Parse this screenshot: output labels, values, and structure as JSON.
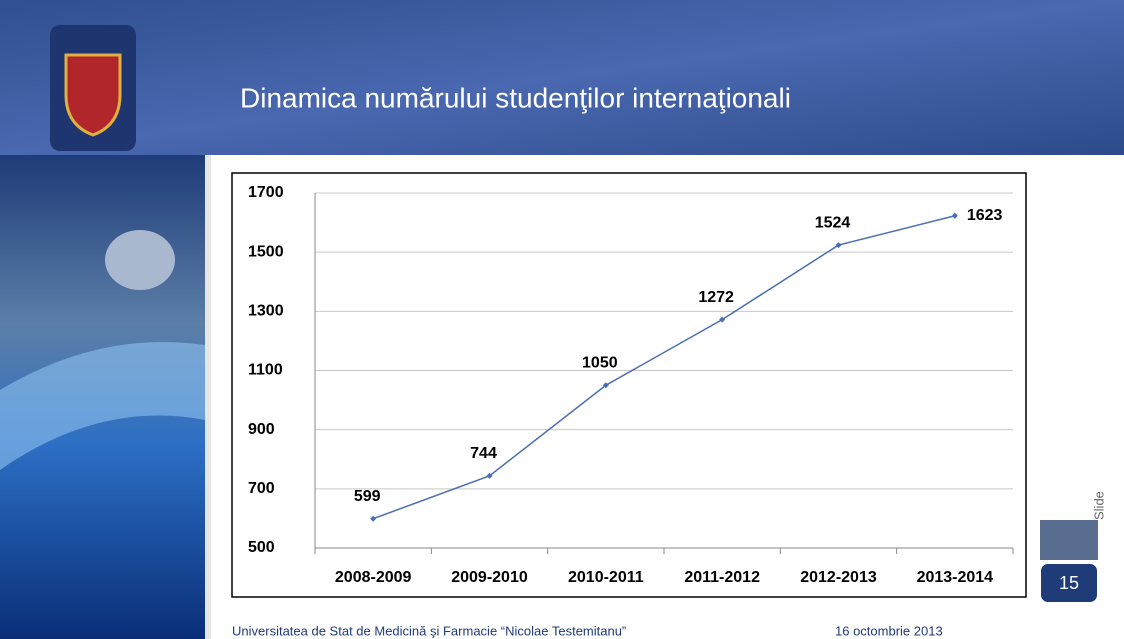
{
  "slide": {
    "title": "Dinamica numărului studenţilor internaţionali",
    "footer_left": "Universitatea de Stat de Medicină şi Farmacie “Nicolae Testemitanu”",
    "footer_right": "16 octombrie 2013",
    "slide_label": "Slide",
    "slide_number": "15"
  },
  "chart_data": {
    "type": "line",
    "categories": [
      "2008-2009",
      "2009-2010",
      "2010-2011",
      "2011-2012",
      "2012-2013",
      "2013-2014"
    ],
    "values": [
      599,
      744,
      1050,
      1272,
      1524,
      1623
    ],
    "color": "#4a6db3",
    "ylim": [
      500,
      1700
    ],
    "yticks": [
      500,
      700,
      900,
      1100,
      1300,
      1500,
      1700
    ],
    "grid": true
  }
}
